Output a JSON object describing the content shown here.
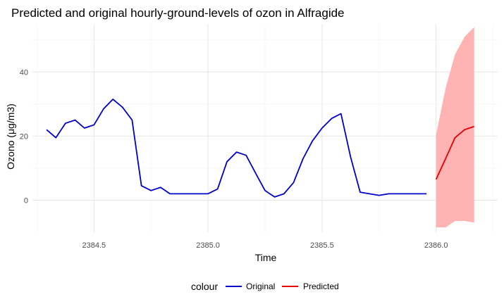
{
  "chart_data": {
    "type": "line",
    "title": "Predicted and original hourly-ground-levels of ozon in Alfragide",
    "xlabel": "Time",
    "ylabel": "Ozono (μg/m3)",
    "xlim": [
      2384.23,
      2386.27
    ],
    "ylim": [
      -10,
      55
    ],
    "x_ticks": [
      2384.5,
      2385.0,
      2385.5,
      2386.0
    ],
    "x_tick_labels": [
      "2384.5",
      "2385.0",
      "2385.5",
      "2386.0"
    ],
    "y_ticks": [
      0,
      20,
      40
    ],
    "y_tick_labels": [
      "0",
      "20",
      "40"
    ],
    "grid": true,
    "legend": {
      "position": "bottom",
      "title": "colour",
      "items": [
        {
          "label": "Original",
          "color": "#0000cd"
        },
        {
          "label": "Predicted",
          "color": "#e60000"
        }
      ]
    },
    "series": [
      {
        "name": "Original",
        "color": "#0000cd",
        "x": [
          2384.292,
          2384.333,
          2384.375,
          2384.417,
          2384.458,
          2384.5,
          2384.542,
          2384.583,
          2384.625,
          2384.667,
          2384.708,
          2384.75,
          2384.792,
          2384.833,
          2384.875,
          2384.917,
          2384.958,
          2385.0,
          2385.042,
          2385.083,
          2385.125,
          2385.167,
          2385.208,
          2385.25,
          2385.292,
          2385.333,
          2385.375,
          2385.417,
          2385.458,
          2385.5,
          2385.542,
          2385.583,
          2385.625,
          2385.667,
          2385.708,
          2385.75,
          2385.792,
          2385.833,
          2385.875,
          2385.917,
          2385.958
        ],
        "y": [
          22,
          19.5,
          24,
          25,
          22.5,
          23.5,
          28.5,
          31.5,
          29,
          25,
          4.5,
          3,
          4,
          2,
          2,
          2,
          2,
          2,
          3.5,
          12,
          15,
          14,
          8.5,
          3,
          1,
          2,
          5.5,
          13,
          18.5,
          22.5,
          25.5,
          27,
          13.5,
          2.5,
          2,
          1.5,
          2,
          2,
          2,
          2,
          2
        ]
      },
      {
        "name": "Predicted",
        "color": "#e60000",
        "band_color": "#ffb3b3",
        "x": [
          2386.0,
          2386.042,
          2386.083,
          2386.125,
          2386.167
        ],
        "y": [
          6.5,
          13,
          19.5,
          22,
          23
        ],
        "lower": [
          -8.5,
          -8.5,
          -6.5,
          -6.5,
          -7
        ],
        "upper": [
          20.5,
          35,
          45.5,
          51,
          54
        ]
      }
    ]
  }
}
